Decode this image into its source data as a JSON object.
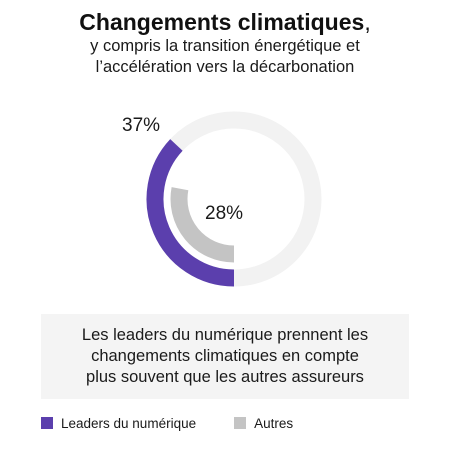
{
  "header": {
    "title": "Changements climatiques",
    "title_comma": ",",
    "subtitle_line1": "y compris la transition énergétique et",
    "subtitle_line2": "l’accélération vers la décarbonation"
  },
  "chart_data": {
    "type": "radial-bar",
    "unit": "%",
    "max": 100,
    "series": [
      {
        "name": "Leaders du numérique",
        "value": 37,
        "label": "37%",
        "color": "#5b3fad"
      },
      {
        "name": "Autres",
        "value": 28,
        "label": "28%",
        "color": "#c4c4c4"
      }
    ],
    "track_color": "#f2f2f2"
  },
  "callout": {
    "line1": "Les leaders du numérique prennent les",
    "line2": "changements climatiques en compte",
    "line3": "plus souvent que les autres assureurs"
  },
  "legend": {
    "items": [
      {
        "label": "Leaders du numérique",
        "color": "#5b3fad"
      },
      {
        "label": "Autres",
        "color": "#c4c4c4"
      }
    ]
  }
}
